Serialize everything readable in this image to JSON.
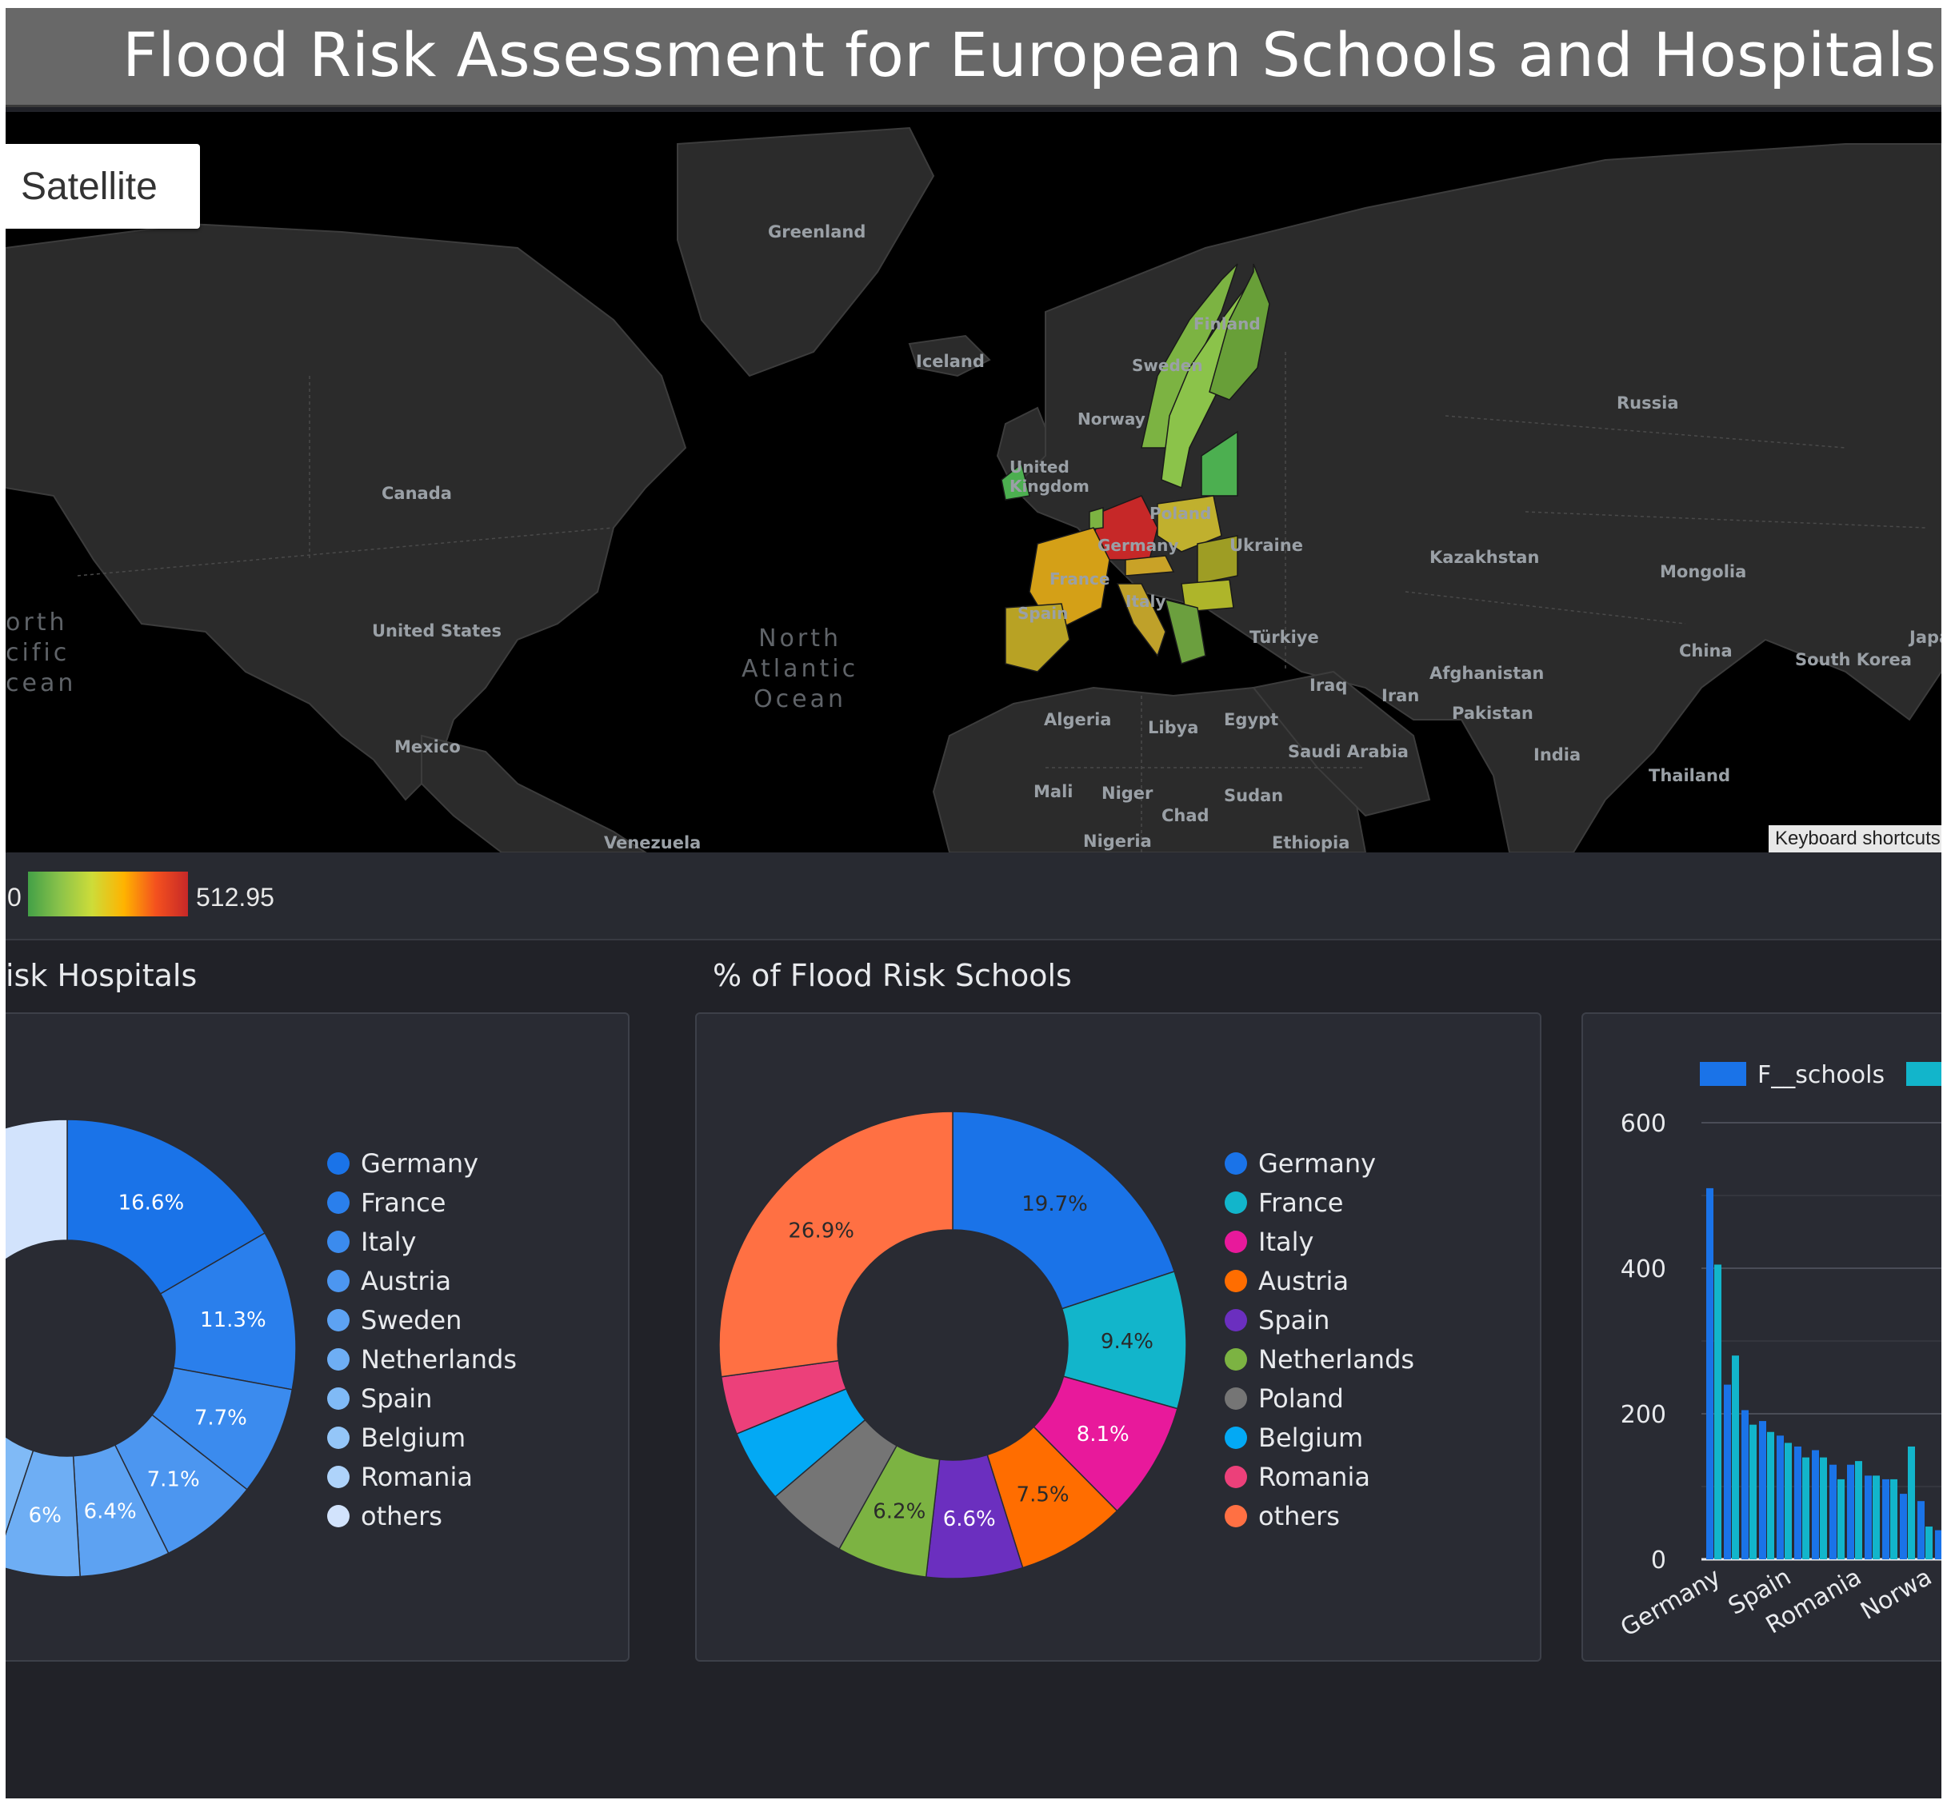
{
  "title": "Flood Risk Assessment for European Schools and Hospitals",
  "map": {
    "satellite_button": "Satellite",
    "keyboard_shortcuts": "Keyboard shortcuts",
    "labels": {
      "greenland": "Greenland",
      "iceland": "Iceland",
      "canada": "Canada",
      "united_states": "United States",
      "mexico": "Mexico",
      "venezuela": "Venezuela",
      "north_atlantic": "North\nAtlantic\nOcean",
      "north_pacific": "orth\ncific\ncean",
      "uk": "United\nKingdom",
      "norway": "Norway",
      "sweden": "Sweden",
      "finland": "Finland",
      "poland": "Poland",
      "germany": "Germany",
      "france": "France",
      "spain": "Spain",
      "italy": "Italy",
      "ukraine": "Ukraine",
      "russia": "Russia",
      "kazakhstan": "Kazakhstan",
      "mongolia": "Mongolia",
      "china": "China",
      "south_korea": "South Korea",
      "japan": "Japa",
      "turkiye": "Türkiye",
      "iraq": "Iraq",
      "iran": "Iran",
      "afghanistan": "Afghanistan",
      "pakistan": "Pakistan",
      "india": "India",
      "thailand": "Thailand",
      "algeria": "Algeria",
      "libya": "Libya",
      "egypt": "Egypt",
      "saudi_arabia": "Saudi Arabia",
      "mali": "Mali",
      "niger": "Niger",
      "chad": "Chad",
      "sudan": "Sudan",
      "nigeria": "Nigeria",
      "ethiopia": "Ethiopia"
    }
  },
  "color_scale": {
    "min": "0",
    "max": "512.95",
    "colors": [
      "#43a047",
      "#cddc39",
      "#ffb300",
      "#c62828"
    ]
  },
  "hospitals_panel": {
    "title": "isk Hospitals",
    "legend": [
      "Germany",
      "France",
      "Italy",
      "Austria",
      "Sweden",
      "Netherlands",
      "Spain",
      "Belgium",
      "Romania",
      "others"
    ]
  },
  "schools_panel": {
    "title": "% of Flood Risk Schools",
    "legend": [
      "Germany",
      "France",
      "Italy",
      "Austria",
      "Spain",
      "Netherlands",
      "Poland",
      "Belgium",
      "Romania",
      "others"
    ]
  },
  "bar_panel": {
    "legend": [
      "F__schools",
      ""
    ]
  },
  "chart_data": [
    {
      "type": "pie",
      "title": "isk Hospitals",
      "categories": [
        "Germany",
        "France",
        "Italy",
        "Austria",
        "Sweden",
        "Netherlands",
        "Spain",
        "Belgium",
        "Romania",
        "others"
      ],
      "values": [
        16.6,
        11.3,
        7.7,
        7.1,
        6.4,
        6.0,
        5.8,
        5.2,
        4.8,
        29.1
      ],
      "labels": [
        "16.6%",
        "11.3%",
        "7.7%",
        "7.1%",
        "6.4%",
        "6%",
        "",
        "",
        "",
        ""
      ],
      "colors": [
        "#1a73e8",
        "#2a7fec",
        "#3b8bee",
        "#4c96f0",
        "#5da2f2",
        "#6eaef4",
        "#80baf6",
        "#94c6f8",
        "#aed3fa",
        "#d2e3fc"
      ],
      "donut": true
    },
    {
      "type": "pie",
      "title": "% of Flood Risk Schools",
      "categories": [
        "Germany",
        "France",
        "Italy",
        "Austria",
        "Spain",
        "Netherlands",
        "Poland",
        "Belgium",
        "Romania",
        "others"
      ],
      "values": [
        19.7,
        9.4,
        8.1,
        7.5,
        6.6,
        6.2,
        5.6,
        5.0,
        4.0,
        26.9
      ],
      "labels": [
        "19.7%",
        "9.4%",
        "8.1%",
        "7.5%",
        "6.6%",
        "6.2%",
        "",
        "",
        "",
        "26.9%"
      ],
      "colors": [
        "#1a73e8",
        "#12b5cb",
        "#e8199b",
        "#ff6d00",
        "#6b2fbf",
        "#7cb342",
        "#757575",
        "#03a9f4",
        "#ec407a",
        "#ff7043"
      ],
      "donut": true
    },
    {
      "type": "bar",
      "categories": [
        "Germany",
        "",
        "",
        "",
        "Spain",
        "",
        "",
        "",
        "Romania",
        "",
        "",
        "",
        "Norwa",
        ""
      ],
      "x_tick_labels": [
        "Germany",
        "Spain",
        "Romania",
        "Norwa"
      ],
      "series": [
        {
          "name": "F__schools",
          "color": "#1a73e8",
          "values": [
            510,
            240,
            205,
            190,
            170,
            155,
            150,
            130,
            130,
            115,
            110,
            90,
            80,
            40
          ]
        },
        {
          "name": "",
          "color": "#12b5cb",
          "values": [
            405,
            280,
            185,
            175,
            160,
            140,
            140,
            110,
            135,
            115,
            110,
            155,
            45,
            85
          ]
        }
      ],
      "ylim": [
        0,
        600
      ],
      "yticks": [
        0,
        200,
        400,
        600
      ]
    }
  ]
}
